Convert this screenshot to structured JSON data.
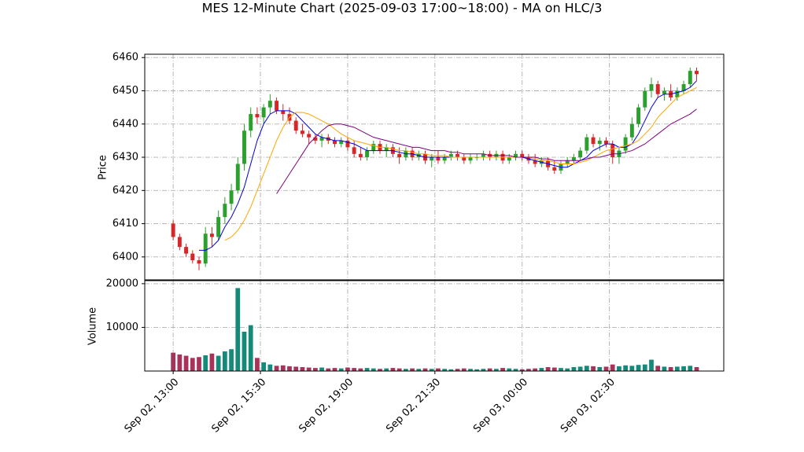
{
  "chart_data": {
    "type": "candlestick",
    "title": "MES 12-Minute Chart (2025-09-03 17:00~18:00) - MA on HLC/3",
    "ylabel": "Price",
    "open": [
      6410,
      6406,
      6403,
      6401,
      6399,
      6398,
      6407,
      6406,
      6412,
      6416,
      6420,
      6428,
      6438,
      6443,
      6442,
      6445,
      6447,
      6444,
      6443,
      6441,
      6438,
      6437,
      6436,
      6435,
      6436,
      6435,
      6434,
      6435,
      6433,
      6431,
      6430,
      6432,
      6434,
      6432,
      6433,
      6431,
      6430,
      6432,
      6430,
      6431,
      6429,
      6430,
      6429,
      6430,
      6431,
      6430,
      6429,
      6430,
      6430,
      6431,
      6430,
      6431,
      6429,
      6430,
      6431,
      6430,
      6429,
      6428,
      6429,
      6427,
      6426,
      6428,
      6429,
      6430,
      6432,
      6436,
      6434,
      6435,
      6434,
      6430,
      6432,
      6436,
      6440,
      6445,
      6450,
      6452,
      6449,
      6450,
      6448,
      6450,
      6452,
      6456
    ],
    "high": [
      6411,
      6407,
      6404,
      6402,
      6400,
      6409,
      6409,
      6414,
      6418,
      6422,
      6430,
      6440,
      6445,
      6445,
      6446,
      6449,
      6448,
      6446,
      6445,
      6442,
      6440,
      6438,
      6437,
      6437,
      6437,
      6436,
      6436,
      6436,
      6435,
      6433,
      6433,
      6435,
      6435,
      6434,
      6434,
      6433,
      6433,
      6433,
      6432,
      6432,
      6431,
      6432,
      6431,
      6432,
      6432,
      6431,
      6431,
      6431,
      6432,
      6432,
      6432,
      6432,
      6431,
      6432,
      6432,
      6431,
      6431,
      6430,
      6430,
      6429,
      6429,
      6430,
      6431,
      6433,
      6437,
      6437,
      6436,
      6436,
      6435,
      6433,
      6437,
      6442,
      6446,
      6451,
      6454,
      6453,
      6451,
      6452,
      6451,
      6453,
      6457,
      6457
    ],
    "low": [
      6405,
      6402,
      6400,
      6398,
      6396,
      6397,
      6403,
      6405,
      6410,
      6414,
      6419,
      6426,
      6436,
      6440,
      6440,
      6443,
      6443,
      6441,
      6440,
      6437,
      6436,
      6434,
      6434,
      6433,
      6434,
      6433,
      6433,
      6432,
      6430,
      6429,
      6429,
      6431,
      6431,
      6430,
      6430,
      6428,
      6429,
      6429,
      6429,
      6428,
      6427,
      6428,
      6428,
      6429,
      6429,
      6428,
      6428,
      6429,
      6429,
      6429,
      6429,
      6428,
      6428,
      6429,
      6429,
      6428,
      6427,
      6427,
      6426,
      6425,
      6425,
      6427,
      6428,
      6429,
      6431,
      6433,
      6432,
      6433,
      6428,
      6428,
      6431,
      6435,
      6439,
      6444,
      6448,
      6448,
      6447,
      6447,
      6447,
      6449,
      6451,
      6453
    ],
    "close": [
      6406,
      6403,
      6401,
      6399,
      6398,
      6407,
      6406,
      6412,
      6416,
      6420,
      6428,
      6438,
      6443,
      6442,
      6445,
      6447,
      6444,
      6443,
      6441,
      6438,
      6437,
      6436,
      6435,
      6436,
      6435,
      6434,
      6435,
      6433,
      6431,
      6430,
      6432,
      6434,
      6432,
      6433,
      6431,
      6430,
      6432,
      6430,
      6431,
      6429,
      6430,
      6429,
      6430,
      6431,
      6430,
      6429,
      6430,
      6430,
      6431,
      6430,
      6431,
      6429,
      6430,
      6431,
      6430,
      6429,
      6428,
      6429,
      6427,
      6426,
      6428,
      6429,
      6430,
      6432,
      6436,
      6434,
      6435,
      6434,
      6430,
      6432,
      6436,
      6440,
      6445,
      6450,
      6452,
      6449,
      6450,
      6448,
      6450,
      6452,
      6456,
      6455
    ],
    "up_color": "#2ca02c",
    "down_color": "#d62728",
    "series": [
      {
        "color": "#0000dd",
        "values": [
          null,
          null,
          null,
          null,
          6402,
          6402,
          6403,
          6405,
          6409,
          6412,
          6416,
          6421,
          6428,
          6435,
          6440,
          6443,
          6444,
          6444,
          6444,
          6443,
          6441,
          6439,
          6437,
          6436,
          6435.5,
          6435,
          6435,
          6434.5,
          6434,
          6433,
          6432,
          6432,
          6432,
          6432,
          6432,
          6431.5,
          6431,
          6431,
          6430.5,
          6430,
          6430,
          6430,
          6430,
          6430,
          6430,
          6430,
          6430,
          6430,
          6430,
          6430,
          6430,
          6430,
          6430,
          6430,
          6430,
          6429.5,
          6429,
          6428.5,
          6428,
          6427.5,
          6427,
          6427,
          6428,
          6429,
          6430,
          6432,
          6433,
          6434,
          6434,
          6433,
          6433,
          6434,
          6437,
          6441,
          6445,
          6448,
          6449,
          6449,
          6449.5,
          6450,
          6451,
          6453
        ]
      },
      {
        "color": "#ffa500",
        "values": [
          null,
          null,
          null,
          null,
          null,
          null,
          null,
          null,
          6405,
          6406,
          6408,
          6411,
          6415,
          6420,
          6425,
          6430,
          6435,
          6439,
          6442,
          6443.5,
          6443.5,
          6443,
          6442,
          6441,
          6440,
          6438.5,
          6437,
          6436,
          6435,
          6434.5,
          6434,
          6433.5,
          6433,
          6433,
          6432.5,
          6432,
          6432,
          6431.5,
          6431,
          6431,
          6430.5,
          6430.5,
          6430.5,
          6430,
          6430,
          6430,
          6430,
          6430,
          6430,
          6430,
          6430,
          6430,
          6430,
          6430,
          6430,
          6430,
          6429.5,
          6429,
          6429,
          6428.5,
          6428,
          6428,
          6428,
          6428.5,
          6429,
          6430,
          6431,
          6432,
          6432.5,
          6433,
          6433.5,
          6434,
          6435,
          6437,
          6439,
          6442,
          6444,
          6446,
          6448,
          6449,
          6450,
          6451
        ]
      },
      {
        "color": "#800080",
        "values": [
          null,
          null,
          null,
          null,
          null,
          null,
          null,
          null,
          null,
          null,
          null,
          null,
          null,
          null,
          null,
          null,
          6419,
          6422,
          6425,
          6428,
          6431,
          6434,
          6436,
          6438,
          6439.5,
          6440,
          6440,
          6439.5,
          6439,
          6438,
          6437,
          6436,
          6435.5,
          6435,
          6434.5,
          6434,
          6433.5,
          6433,
          6433,
          6432.5,
          6432,
          6432,
          6432,
          6431.5,
          6431.5,
          6431,
          6431,
          6431,
          6431,
          6430.5,
          6430.5,
          6430.5,
          6430.5,
          6430,
          6430,
          6430,
          6430,
          6429.5,
          6429.5,
          6429,
          6429,
          6429,
          6429,
          6429,
          6429.5,
          6430,
          6430,
          6430.5,
          6431,
          6431,
          6431.5,
          6432,
          6433,
          6434,
          6435.5,
          6437,
          6438.5,
          6440,
          6441,
          6442,
          6443,
          6444.5
        ]
      }
    ],
    "ylim": [
      6393.1,
      6461
    ],
    "yticks": [
      6400,
      6410,
      6420,
      6430,
      6440,
      6450,
      6460
    ],
    "xlim": [
      -4.4,
      85.2
    ],
    "xticks": [
      {
        "value": 0,
        "label": "Sep 02, 13:00"
      },
      {
        "value": 13.5,
        "label": "Sep 02, 15:30"
      },
      {
        "value": 27,
        "label": "Sep 02, 19:00"
      },
      {
        "value": 40.5,
        "label": "Sep 02, 21:30"
      },
      {
        "value": 54,
        "label": "Sep 03, 00:00"
      },
      {
        "value": 67.5,
        "label": "Sep 03, 02:30"
      }
    ],
    "grid": true,
    "volume": {
      "ylabel": "Volume",
      "up_color": "#138a7a",
      "down_color": "#a8325a",
      "values": [
        4200,
        3800,
        3500,
        3000,
        3200,
        3600,
        4000,
        3500,
        4500,
        5000,
        19000,
        9000,
        10500,
        3000,
        2000,
        1500,
        1200,
        1300,
        1100,
        1000,
        900,
        800,
        700,
        800,
        600,
        700,
        600,
        800,
        700,
        600,
        700,
        600,
        500,
        600,
        700,
        600,
        500,
        600,
        500,
        600,
        500,
        600,
        500,
        400,
        500,
        600,
        500,
        400,
        500,
        600,
        500,
        700,
        600,
        500,
        400,
        500,
        600,
        700,
        900,
        800,
        700,
        600,
        900,
        1000,
        1200,
        1100,
        900,
        1000,
        1500,
        1100,
        1300,
        1200,
        1400,
        1500,
        2600,
        1200,
        1000,
        900,
        1000,
        1100,
        1200,
        900
      ],
      "ylim": [
        0,
        20700
      ],
      "yticks": [
        10000,
        20000
      ]
    }
  }
}
